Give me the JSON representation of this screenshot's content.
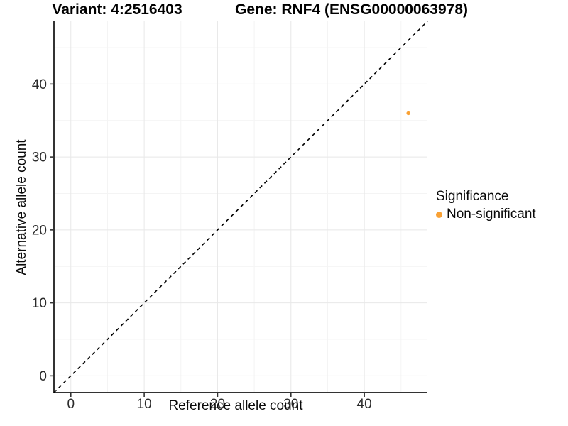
{
  "titles": {
    "variant": "Variant: 4:2516403",
    "gene": "Gene: RNF4 (ENSG00000063978)"
  },
  "chart_data": {
    "type": "scatter",
    "title_left": "Variant: 4:2516403",
    "title_right": "Gene: RNF4 (ENSG00000063978)",
    "xlabel": "Reference allele count",
    "ylabel": "Alternative allele count",
    "xlim": [
      -2.3,
      48.6
    ],
    "ylim": [
      -2.3,
      48.6
    ],
    "xticks": [
      0,
      10,
      20,
      30,
      40
    ],
    "yticks": [
      0,
      10,
      20,
      30,
      40
    ],
    "minor_xticks": [
      5,
      15,
      25,
      35,
      45
    ],
    "minor_yticks": [
      5,
      15,
      25,
      35,
      45
    ],
    "grid": "major+minor",
    "identity_line": {
      "style": "dashed",
      "color": "#000000",
      "from": -2.3,
      "to": 48.6
    },
    "series": [
      {
        "name": "Non-significant",
        "color": "#F9A134",
        "points": [
          {
            "x": 46,
            "y": 36
          }
        ]
      }
    ],
    "legend": {
      "title": "Significance",
      "position": "right",
      "items": [
        {
          "label": "Non-significant",
          "color": "#F9A134"
        }
      ]
    }
  },
  "colors": {
    "background": "#FFFFFF",
    "axis_line": "#333333",
    "tick_mark": "#333333",
    "tick_label": "#2B2B2B",
    "grid_major": "#E8E8E8",
    "grid_minor": "#F4F4F4",
    "title_text": "#000000"
  }
}
